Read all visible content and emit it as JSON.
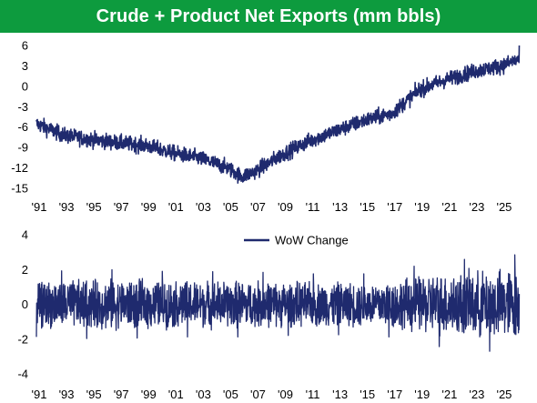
{
  "header": {
    "title": "Crude + Product Net Exports (mm bbls)"
  },
  "colors": {
    "title_bg": "#0d9b3e",
    "title_text": "#ffffff",
    "series": "#1f2a6e"
  },
  "chart_data": [
    {
      "type": "line",
      "title": "Crude + Product Net Exports (mm bbls)",
      "xlabel": "",
      "ylabel": "",
      "ylim": [
        -15,
        6
      ],
      "xlim": [
        1991,
        2026.6
      ],
      "y_ticks": [
        "6",
        "3",
        "0",
        "-3",
        "-6",
        "-9",
        "-12",
        "-15"
      ],
      "x_ticks": [
        "'91",
        "'93",
        "'95",
        "'97",
        "'99",
        "'01",
        "'03",
        "'05",
        "'07",
        "'09",
        "'11",
        "'13",
        "'15",
        "'17",
        "'19",
        "'21",
        "'23",
        "'25"
      ],
      "legend": "none",
      "grid": false,
      "series": [
        {
          "x": [
            1991,
            1993,
            1995,
            1997,
            1999,
            2001,
            2003,
            2005,
            2006,
            2007,
            2009,
            2011,
            2013,
            2015,
            2017,
            2019,
            2021,
            2023,
            2025,
            2026.3
          ],
          "values": [
            -5.5,
            -7.2,
            -7.8,
            -8.3,
            -8.7,
            -9.8,
            -10.6,
            -12.0,
            -13.3,
            -12.5,
            -10.0,
            -8.0,
            -6.5,
            -5.0,
            -4.0,
            -0.5,
            1.0,
            2.2,
            3.0,
            4.0
          ]
        }
      ]
    },
    {
      "type": "line",
      "title": "",
      "xlabel": "",
      "ylabel": "",
      "ylim": [
        -4,
        4
      ],
      "xlim": [
        1991,
        2026.6
      ],
      "y_ticks": [
        "4",
        "2",
        "0",
        "-2",
        "-4"
      ],
      "x_ticks": [
        "'91",
        "'93",
        "'95",
        "'97",
        "'99",
        "'01",
        "'03",
        "'05",
        "'07",
        "'09",
        "'11",
        "'13",
        "'15",
        "'17",
        "'19",
        "'21",
        "'23",
        "'25"
      ],
      "legend": "top-center",
      "grid": false,
      "series": [
        {
          "name": "WoW Change",
          "x": [
            1991,
            1996,
            2001,
            2006,
            2011,
            2016,
            2019,
            2021,
            2023,
            2025,
            2026.3
          ],
          "amplitude": [
            1.5,
            1.6,
            1.5,
            1.5,
            1.4,
            1.4,
            1.8,
            2.0,
            2.1,
            2.2,
            2.3
          ]
        }
      ]
    }
  ]
}
